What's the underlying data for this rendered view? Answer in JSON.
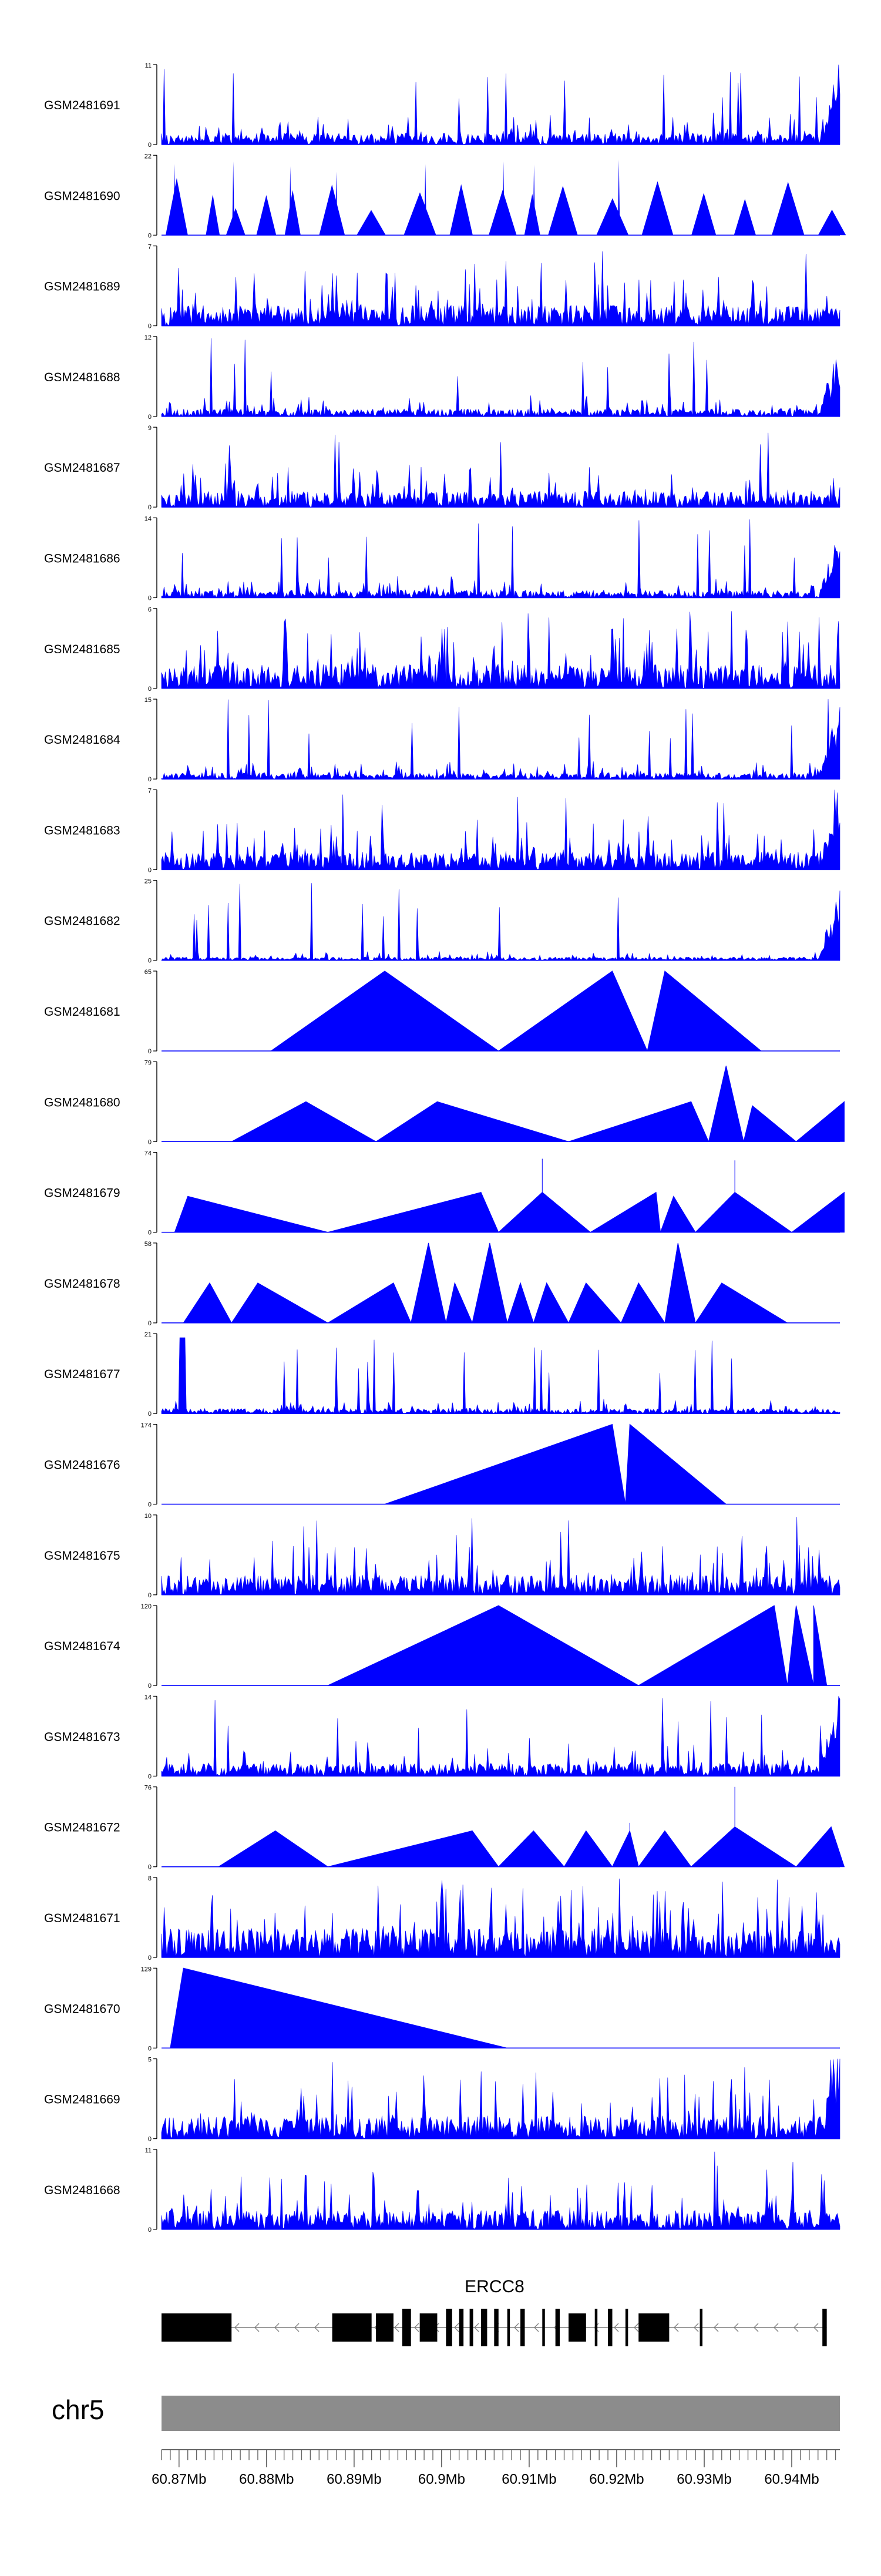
{
  "chart_data": {
    "type": "area",
    "title": "",
    "xlabel": "",
    "ylabel": "",
    "x_range_mb": [
      60.868,
      60.9455
    ],
    "tracks": [
      {
        "sample": "GSM2481691",
        "ymax": "11",
        "ymin": "0",
        "max": 11,
        "pattern": "noise",
        "seed": 11,
        "rampEnd": true,
        "level": 0.18
      },
      {
        "sample": "GSM2481690",
        "ymax": "22",
        "ymin": "0",
        "max": 22,
        "pattern": "spikes",
        "seed": 12
      },
      {
        "sample": "GSM2481689",
        "ymax": "7",
        "ymin": "0",
        "max": 7,
        "pattern": "noise",
        "seed": 13,
        "rampEnd": false,
        "level": 0.32
      },
      {
        "sample": "GSM2481688",
        "ymax": "12",
        "ymin": "0",
        "max": 12,
        "pattern": "noise",
        "seed": 14,
        "rampEnd": true,
        "level": 0.12
      },
      {
        "sample": "GSM2481687",
        "ymax": "9",
        "ymin": "0",
        "max": 9,
        "pattern": "noise",
        "seed": 15,
        "rampEnd": false,
        "level": 0.25
      },
      {
        "sample": "GSM2481686",
        "ymax": "14",
        "ymin": "0",
        "max": 14,
        "pattern": "noise",
        "seed": 16,
        "rampEnd": true,
        "level": 0.12
      },
      {
        "sample": "GSM2481685",
        "ymax": "6",
        "ymin": "0",
        "max": 6,
        "pattern": "noise",
        "seed": 17,
        "rampEnd": false,
        "level": 0.38
      },
      {
        "sample": "GSM2481684",
        "ymax": "15",
        "ymin": "0",
        "max": 15,
        "pattern": "noise",
        "seed": 18,
        "rampEnd": true,
        "level": 0.1
      },
      {
        "sample": "GSM2481683",
        "ymax": "7",
        "ymin": "0",
        "max": 7,
        "pattern": "noise",
        "seed": 19,
        "rampEnd": true,
        "level": 0.28
      },
      {
        "sample": "GSM2481682",
        "ymax": "25",
        "ymin": "0",
        "max": 25,
        "pattern": "noise",
        "seed": 20,
        "rampEnd": true,
        "level": 0.05
      },
      {
        "sample": "GSM2481681",
        "ymax": "65",
        "ymin": "0",
        "max": 65,
        "pattern": "segments",
        "segments": [
          [
            60.8805,
            60.8935,
            60.9065,
            1.0
          ],
          [
            60.9065,
            60.9195,
            60.9235,
            1.0
          ],
          [
            60.9235,
            60.9255,
            60.9365,
            1.0
          ]
        ]
      },
      {
        "sample": "GSM2481680",
        "ymax": "79",
        "ymin": "0",
        "max": 79,
        "pattern": "segments",
        "segments": [
          [
            60.876,
            60.8845,
            60.8925,
            0.5
          ],
          [
            60.8925,
            60.8995,
            60.9145,
            0.5
          ],
          [
            60.9145,
            60.9285,
            60.9305,
            0.5
          ],
          [
            60.9305,
            60.9325,
            60.9345,
            0.95
          ],
          [
            60.9345,
            60.9355,
            60.9405,
            0.45
          ],
          [
            60.9405,
            60.946,
            60.946,
            0.5
          ]
        ]
      },
      {
        "sample": "GSM2481679",
        "ymax": "74",
        "ymin": "0",
        "max": 74,
        "pattern": "segments",
        "segments": [
          [
            60.8695,
            60.871,
            60.887,
            0.45
          ],
          [
            60.887,
            60.9045,
            60.9065,
            0.5
          ],
          [
            60.9065,
            60.9115,
            60.917,
            0.5
          ],
          [
            60.9115,
            60.9115,
            60.9115,
            0.92
          ],
          [
            60.917,
            60.9245,
            60.925,
            0.5
          ],
          [
            60.925,
            60.9265,
            60.929,
            0.45
          ],
          [
            60.929,
            60.9335,
            60.94,
            0.5
          ],
          [
            60.9335,
            60.9335,
            60.9335,
            0.9
          ],
          [
            60.94,
            60.946,
            60.946,
            0.5
          ]
        ]
      },
      {
        "sample": "GSM2481678",
        "ymax": "58",
        "ymin": "0",
        "max": 58,
        "pattern": "segments",
        "segments": [
          [
            60.8705,
            60.8735,
            60.876,
            0.5
          ],
          [
            60.876,
            60.879,
            60.887,
            0.5
          ],
          [
            60.887,
            60.8945,
            60.8965,
            0.5
          ],
          [
            60.8965,
            60.8985,
            60.9005,
            1.0
          ],
          [
            60.9005,
            60.9015,
            60.9035,
            0.5
          ],
          [
            60.9035,
            60.9055,
            60.9075,
            1.0
          ],
          [
            60.9075,
            60.909,
            60.9105,
            0.5
          ],
          [
            60.9105,
            60.912,
            60.9145,
            0.5
          ],
          [
            60.9145,
            60.9165,
            60.9205,
            0.5
          ],
          [
            60.9205,
            60.9225,
            60.9255,
            0.5
          ],
          [
            60.9255,
            60.927,
            60.929,
            1.0
          ],
          [
            60.929,
            60.932,
            60.9395,
            0.5
          ]
        ]
      },
      {
        "sample": "GSM2481677",
        "ymax": "21",
        "ymin": "0",
        "max": 21,
        "pattern": "noise",
        "seed": 21,
        "rampEnd": false,
        "level": 0.08,
        "startSpike": true
      },
      {
        "sample": "GSM2481676",
        "ymax": "174",
        "ymin": "0",
        "max": 174,
        "pattern": "segments",
        "segments": [
          [
            60.8935,
            60.9195,
            60.921,
            1.0
          ],
          [
            60.921,
            60.9215,
            60.9325,
            1.0
          ]
        ]
      },
      {
        "sample": "GSM2481675",
        "ymax": "10",
        "ymin": "0",
        "max": 10,
        "pattern": "noise",
        "seed": 22,
        "rampEnd": false,
        "level": 0.32
      },
      {
        "sample": "GSM2481674",
        "ymax": "120",
        "ymin": "0",
        "max": 120,
        "pattern": "segments",
        "segments": [
          [
            60.887,
            60.9065,
            60.9225,
            1.0
          ],
          [
            60.9225,
            60.938,
            60.9395,
            1.0
          ],
          [
            60.9395,
            60.9405,
            60.9425,
            1.0
          ],
          [
            60.9425,
            60.9425,
            60.944,
            1.0
          ]
        ]
      },
      {
        "sample": "GSM2481673",
        "ymax": "14",
        "ymin": "0",
        "max": 14,
        "pattern": "noise",
        "seed": 23,
        "rampEnd": true,
        "level": 0.2
      },
      {
        "sample": "GSM2481672",
        "ymax": "76",
        "ymin": "0",
        "max": 76,
        "pattern": "segments",
        "segments": [
          [
            60.8745,
            60.881,
            60.887,
            0.45
          ],
          [
            60.887,
            60.9035,
            60.9065,
            0.45
          ],
          [
            60.9065,
            60.9105,
            60.914,
            0.45
          ],
          [
            60.914,
            60.9165,
            60.9195,
            0.45
          ],
          [
            60.9195,
            60.9215,
            60.9225,
            0.45
          ],
          [
            60.9215,
            60.9215,
            60.9215,
            0.55
          ],
          [
            60.9225,
            60.9255,
            60.9285,
            0.45
          ],
          [
            60.9285,
            60.9335,
            60.9405,
            0.5
          ],
          [
            60.9335,
            60.9335,
            60.9335,
            1.0
          ],
          [
            60.9405,
            60.9445,
            60.946,
            0.5
          ]
        ]
      },
      {
        "sample": "GSM2481671",
        "ymax": "8",
        "ymin": "0",
        "max": 8,
        "pattern": "noise",
        "seed": 24,
        "rampEnd": false,
        "level": 0.45
      },
      {
        "sample": "GSM2481670",
        "ymax": "129",
        "ymin": "0",
        "max": 129,
        "pattern": "segments",
        "segments": [
          [
            60.869,
            60.8705,
            60.9075,
            1.0
          ]
        ]
      },
      {
        "sample": "GSM2481669",
        "ymax": "5",
        "ymin": "0",
        "max": 5,
        "pattern": "noise",
        "seed": 25,
        "rampEnd": true,
        "level": 0.35
      },
      {
        "sample": "GSM2481668",
        "ymax": "11",
        "ymin": "0",
        "max": 11,
        "pattern": "noise",
        "seed": 26,
        "rampEnd": false,
        "level": 0.3
      }
    ],
    "gene": {
      "name": "ERCC8",
      "strand": "-",
      "exons": [
        [
          60.868,
          60.876
        ],
        [
          60.8875,
          60.892
        ],
        [
          60.8925,
          60.8945
        ],
        [
          60.8955,
          60.8965
        ],
        [
          60.8975,
          60.8995
        ],
        [
          60.9005,
          60.9012
        ],
        [
          60.902,
          60.9025
        ],
        [
          60.9032,
          60.9036
        ],
        [
          60.9045,
          60.9052
        ],
        [
          60.906,
          60.9065
        ],
        [
          60.9075,
          60.9078
        ],
        [
          60.909,
          60.9095
        ],
        [
          60.9115,
          60.9118
        ],
        [
          60.913,
          60.9135
        ],
        [
          60.9145,
          60.9165
        ],
        [
          60.9175,
          60.9178
        ],
        [
          60.919,
          60.9195
        ],
        [
          60.921,
          60.9213
        ],
        [
          60.9225,
          60.926
        ],
        [
          60.9295,
          60.9298
        ],
        [
          60.9435,
          60.944
        ]
      ]
    },
    "chromosome": "chr5",
    "axis_ticks": [
      {
        "value": 60.87,
        "label": "60.87Mb"
      },
      {
        "value": 60.88,
        "label": "60.88Mb"
      },
      {
        "value": 60.89,
        "label": "60.89Mb"
      },
      {
        "value": 60.9,
        "label": "60.9Mb"
      },
      {
        "value": 60.91,
        "label": "60.91Mb"
      },
      {
        "value": 60.92,
        "label": "60.92Mb"
      },
      {
        "value": 60.93,
        "label": "60.93Mb"
      },
      {
        "value": 60.94,
        "label": "60.94Mb"
      }
    ],
    "colors": {
      "fill": "#0000ff",
      "ideogram": "#8c8c8c",
      "gene": "#000000",
      "intron": "#7f7f7f"
    }
  }
}
